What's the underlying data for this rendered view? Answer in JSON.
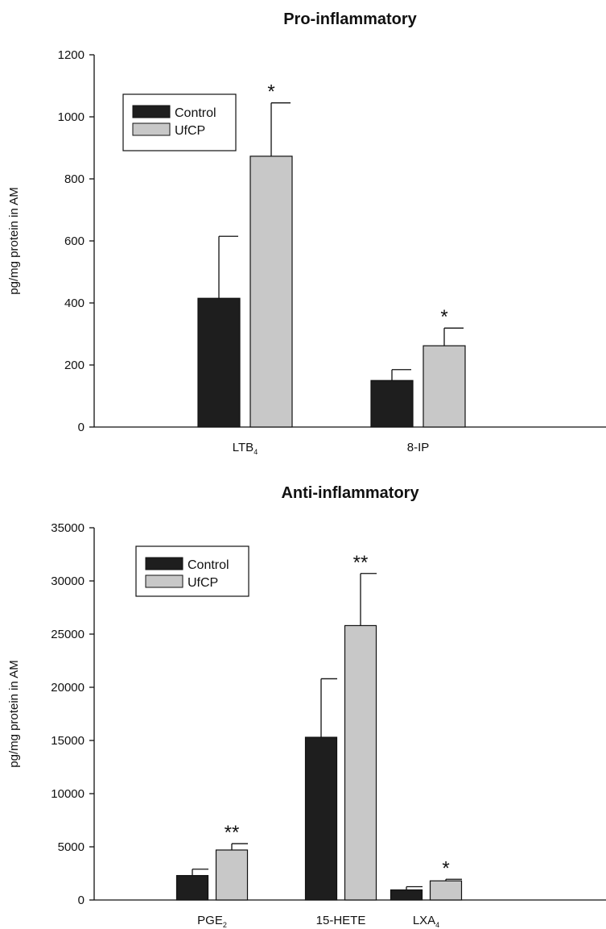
{
  "chart_data": [
    {
      "type": "bar",
      "title": "Pro-inflammatory",
      "ylabel": "pg/mg protein in AM",
      "ylim": [
        0,
        1200
      ],
      "yticks": [
        0,
        200,
        400,
        600,
        800,
        1000,
        1200
      ],
      "categories": [
        {
          "base": "LTB",
          "sub": "4"
        },
        {
          "base": "8-IP",
          "sub": ""
        }
      ],
      "series": [
        {
          "name": "Control",
          "color": "#1e1e1e",
          "values": [
            415,
            150
          ],
          "errors": [
            200,
            35
          ]
        },
        {
          "name": "UfCP",
          "color": "#c8c8c8",
          "values": [
            873,
            262
          ],
          "errors": [
            172,
            57
          ]
        }
      ],
      "annotations": [
        "*",
        "*"
      ],
      "legend_position": "top-left",
      "grid": false
    },
    {
      "type": "bar",
      "title": "Anti-inflammatory",
      "ylabel": "pg/mg protein in AM",
      "ylim": [
        0,
        35000
      ],
      "yticks": [
        0,
        5000,
        10000,
        15000,
        20000,
        25000,
        30000,
        35000
      ],
      "categories": [
        {
          "base": "PGE",
          "sub": "2"
        },
        {
          "base": "15-HETE",
          "sub": ""
        },
        {
          "base": "LXA",
          "sub": "4"
        }
      ],
      "series": [
        {
          "name": "Control",
          "color": "#1e1e1e",
          "values": [
            2300,
            15300,
            950
          ],
          "errors": [
            600,
            5500,
            300
          ]
        },
        {
          "name": "UfCP",
          "color": "#c8c8c8",
          "values": [
            4700,
            25800,
            1800
          ],
          "errors": [
            600,
            4900,
            150
          ]
        }
      ],
      "annotations": [
        "**",
        "**",
        "*"
      ],
      "legend_position": "top-left",
      "grid": false
    }
  ]
}
